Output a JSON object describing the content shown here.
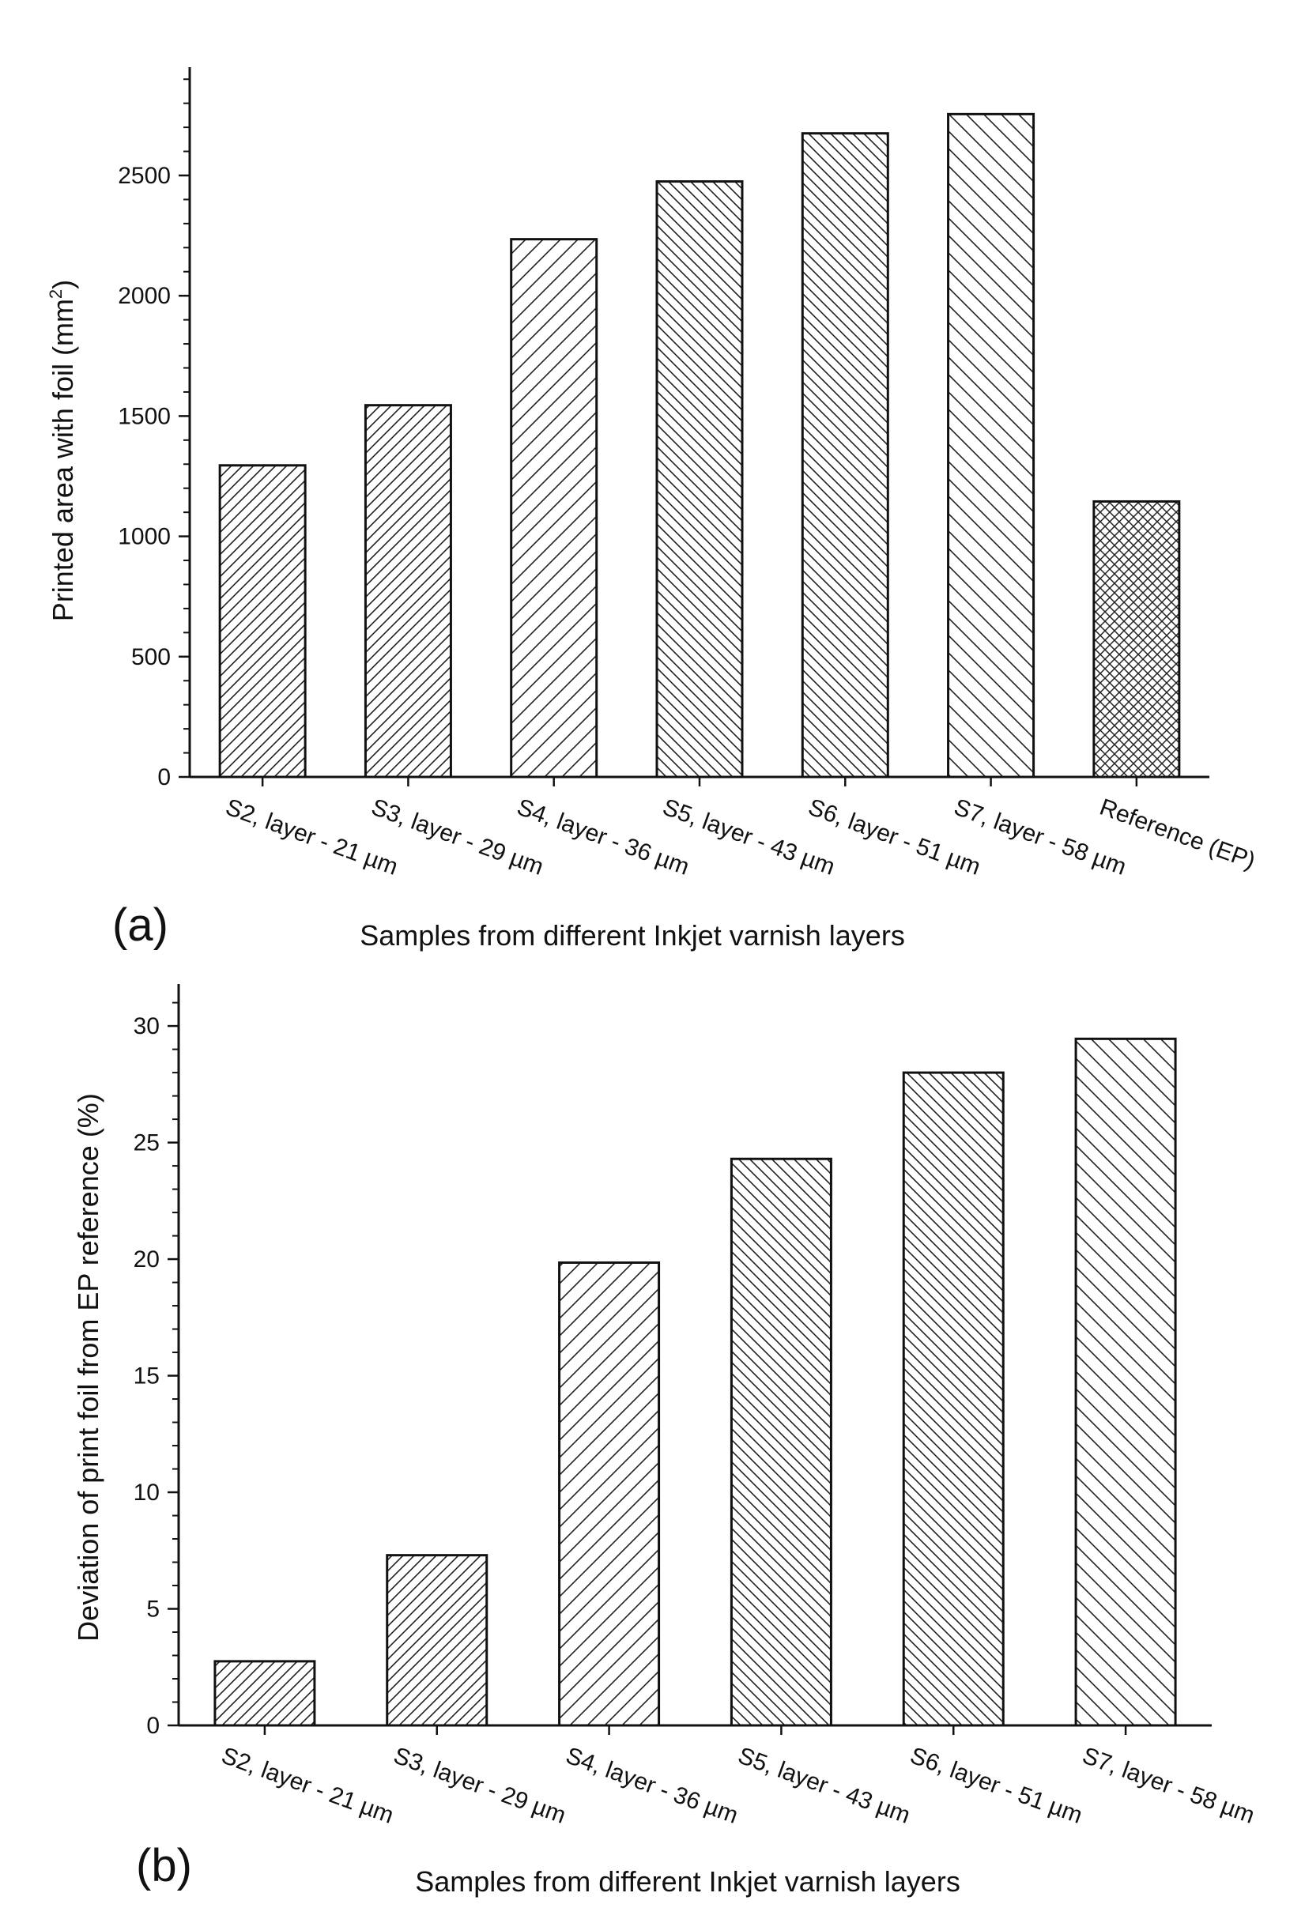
{
  "chart_data": [
    {
      "panel": "(a)",
      "type": "bar",
      "categories": [
        "S2, layer - 21 µm",
        "S3, layer - 29 µm",
        "S4, layer - 36 µm",
        "S5, layer - 43 µm",
        "S6, layer - 51 µm",
        "S7, layer - 58 µm",
        "Reference (EP)"
      ],
      "values": [
        1295,
        1545,
        2235,
        2475,
        2675,
        2755,
        1145
      ],
      "patterns": [
        "dense-ne",
        "dense-ne",
        "sparse-ne",
        "dense-nw",
        "dense-nw",
        "sparse-nw",
        "crosshatch"
      ],
      "xlabel": "Samples from different Inkjet varnish layers",
      "ylabel_main": "Printed area with foil (mm",
      "ylabel_sup": "2",
      "ylabel_end": ")",
      "ylim": [
        0,
        2950
      ],
      "yticks": [
        "0",
        "500",
        "1000",
        "1500",
        "2000",
        "2500"
      ]
    },
    {
      "panel": "(b)",
      "type": "bar",
      "categories": [
        "S2, layer - 21 µm",
        "S3, layer - 29 µm",
        "S4, layer - 36 µm",
        "S5, layer - 43 µm",
        "S6, layer - 51 µm",
        "S7, layer - 58 µm"
      ],
      "values": [
        2.75,
        7.3,
        19.85,
        24.3,
        28.0,
        29.45
      ],
      "patterns": [
        "dense-ne",
        "dense-ne",
        "sparse-ne",
        "dense-nw",
        "dense-nw",
        "sparse-nw"
      ],
      "xlabel": "Samples from different Inkjet varnish layers",
      "ylabel": "Deviation of print foil from EP reference (%)",
      "ylim": [
        0,
        31.8
      ],
      "yticks": [
        "0",
        "5",
        "10",
        "15",
        "20",
        "25",
        "30"
      ]
    }
  ]
}
